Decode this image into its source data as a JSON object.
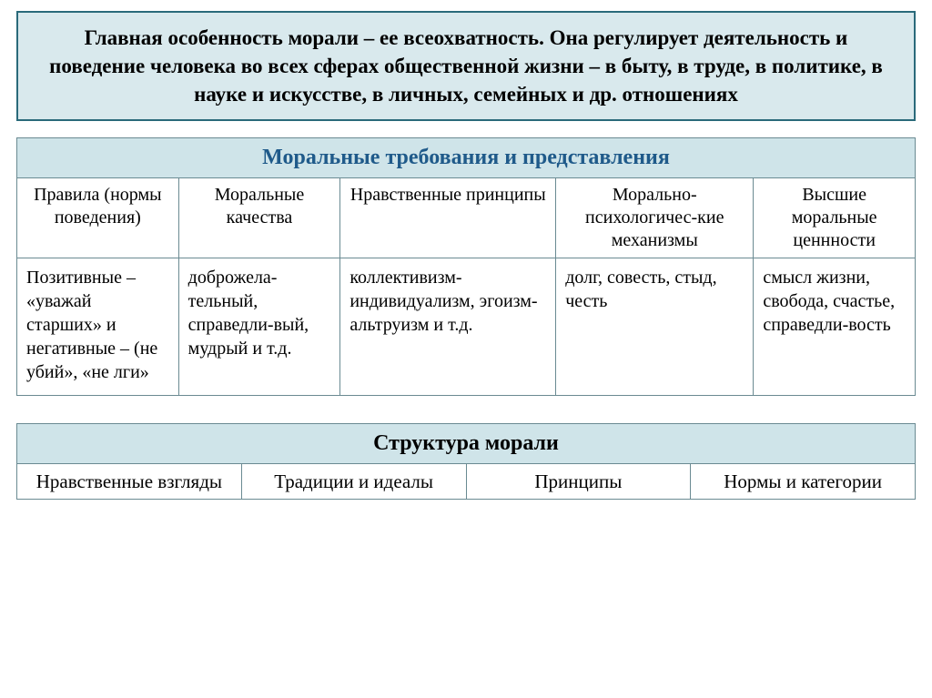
{
  "intro": "Главная особенность морали – ее всеохватность. Она регулирует деятельность и поведение человека во всех сферах общественной жизни – в быту, в труде, в политике, в науке и искусстве, в личных, семейных и др. отношениях",
  "mainTable": {
    "title": "Моральные требования и представления",
    "columns": [
      "Правила (нормы поведения)",
      "Моральные качества",
      "Нравственные принципы",
      "Морально-психологичес-кие механизмы",
      "Высшие моральные ценнности"
    ],
    "cells": [
      "Позитивные – «уважай старших» и негативные – (не убий», «не лги»",
      "доброжела-тельный, справедли-вый, мудрый и т.д.",
      "коллективизм-индивидуализм, эгоизм-альтруизм и т.д.",
      "долг, совесть, стыд, честь",
      "смысл жизни, свобода, счастье, справедли-вость"
    ],
    "colWidths": [
      "18%",
      "18%",
      "24%",
      "22%",
      "18%"
    ]
  },
  "structTable": {
    "title": "Структура морали",
    "cells": [
      "Нравственные взгляды",
      "Традиции и идеалы",
      "Принципы",
      "Нормы и категории"
    ]
  },
  "colors": {
    "headerBg": "#cfe4e9",
    "introBg": "#d9e9ed",
    "border": "#6a8a92",
    "titleText": "#1f5a8a"
  }
}
